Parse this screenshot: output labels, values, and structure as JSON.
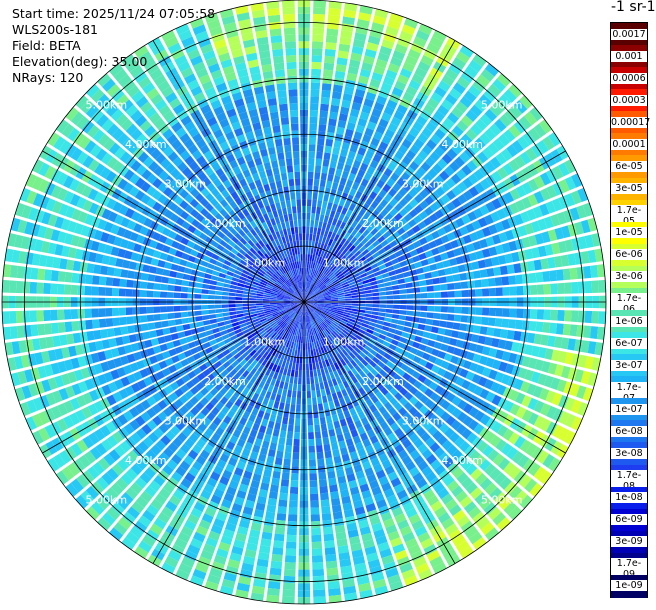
{
  "info": {
    "start_time": "Start time: 2025/11/24 07:05:58",
    "instrument": "WLS200s-181",
    "field": "Field: BETA",
    "elevation": "Elevation(deg): 35.00",
    "nrays": "NRays: 120"
  },
  "colorbar": {
    "title": "-1 sr-1",
    "labels": [
      "0.0017",
      "0.001",
      "0.0006",
      "0.0003",
      "0.00017",
      "0.0001",
      "6e-05",
      "3e-05",
      "1.7e-05",
      "1e-05",
      "6e-06",
      "3e-06",
      "1.7e-06",
      "1e-06",
      "6e-07",
      "3e-07",
      "1.7e-07",
      "1e-07",
      "6e-08",
      "3e-08",
      "1.7e-08",
      "1e-08",
      "6e-09",
      "3e-09",
      "1.7e-09",
      "1e-09"
    ],
    "colors": [
      "#5a0000",
      "#8b0000",
      "#c80000",
      "#ff1a00",
      "#ff5a00",
      "#ff7a00",
      "#ff9a00",
      "#ffb400",
      "#ffd200",
      "#ffff00",
      "#d8ff30",
      "#b4ff5a",
      "#78f08c",
      "#5ae6b4",
      "#3ce6e6",
      "#28c8f5",
      "#1eb4f5",
      "#1e96f0",
      "#1e78f0",
      "#1e5af0",
      "#1e3cf0",
      "#0a1eeb",
      "#0000d2",
      "#0000b4",
      "#00008c",
      "#000064"
    ]
  },
  "chart_data": {
    "type": "ppi",
    "field": "BETA",
    "elevation_deg": 35.0,
    "nrays": 120,
    "range_rings_km": [
      1.0,
      2.0,
      3.0,
      4.0,
      5.0
    ],
    "range_labels": [
      "1.00km",
      "2.00km",
      "3.00km",
      "4.00km",
      "5.00km"
    ],
    "max_range_km": 5.4,
    "radial_lines_deg": [
      0,
      30,
      60,
      90,
      120,
      150,
      180,
      210,
      240,
      270,
      300,
      330
    ],
    "dominant_level": "3e-08",
    "high_return_sectors_deg": [
      [
        100,
        160
      ],
      [
        340,
        30
      ]
    ]
  }
}
